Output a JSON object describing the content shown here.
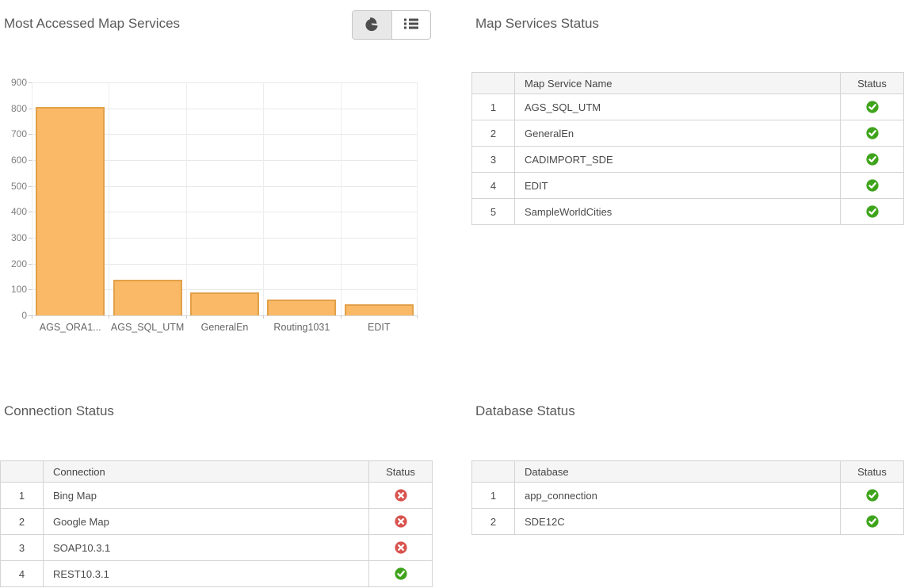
{
  "colors": {
    "title_text": "#595959",
    "bar_fill": "#f9b966",
    "bar_stroke": "#e2a049",
    "status_ok": "#3fa41c",
    "status_error": "#d9534f",
    "table_header_bg": "#f5f5f5",
    "table_border": "#d4d4d4"
  },
  "chart_panel": {
    "title": "Most Accessed Map Services",
    "view_toggle": {
      "chart_button": {
        "icon": "pie-chart-icon",
        "selected": true
      },
      "list_button": {
        "icon": "list-icon",
        "selected": false
      }
    }
  },
  "chart_data": {
    "type": "bar",
    "title": "Most Accessed Map Services",
    "categories": [
      "AGS_ORA1...",
      "AGS_SQL_UTM",
      "GeneralEn",
      "Routing1031",
      "EDIT"
    ],
    "values": [
      805,
      137,
      89,
      60,
      44
    ],
    "xlabel": "",
    "ylabel": "",
    "ylim": [
      0,
      900
    ],
    "ytick_step": 100,
    "grid": true,
    "legend": "none",
    "bar_fill": "#f9b966",
    "bar_stroke": "#e2a049"
  },
  "map_services_status": {
    "title": "Map Services Status",
    "headers": {
      "index": "",
      "name": "Map Service Name",
      "status": "Status"
    },
    "rows": [
      {
        "index": "1",
        "name": "AGS_SQL_UTM",
        "status": "ok"
      },
      {
        "index": "2",
        "name": "GeneralEn",
        "status": "ok"
      },
      {
        "index": "3",
        "name": "CADIMPORT_SDE",
        "status": "ok"
      },
      {
        "index": "4",
        "name": "EDIT",
        "status": "ok"
      },
      {
        "index": "5",
        "name": "SampleWorldCities",
        "status": "ok"
      }
    ]
  },
  "connection_status": {
    "title": "Connection Status",
    "headers": {
      "index": "",
      "name": "Connection",
      "status": "Status"
    },
    "rows": [
      {
        "index": "1",
        "name": "Bing Map",
        "status": "error"
      },
      {
        "index": "2",
        "name": "Google Map",
        "status": "error"
      },
      {
        "index": "3",
        "name": "SOAP10.3.1",
        "status": "error"
      },
      {
        "index": "4",
        "name": "REST10.3.1",
        "status": "ok"
      }
    ]
  },
  "database_status": {
    "title": "Database Status",
    "headers": {
      "index": "",
      "name": "Database",
      "status": "Status"
    },
    "rows": [
      {
        "index": "1",
        "name": "app_connection",
        "status": "ok"
      },
      {
        "index": "2",
        "name": "SDE12C",
        "status": "ok"
      }
    ]
  }
}
